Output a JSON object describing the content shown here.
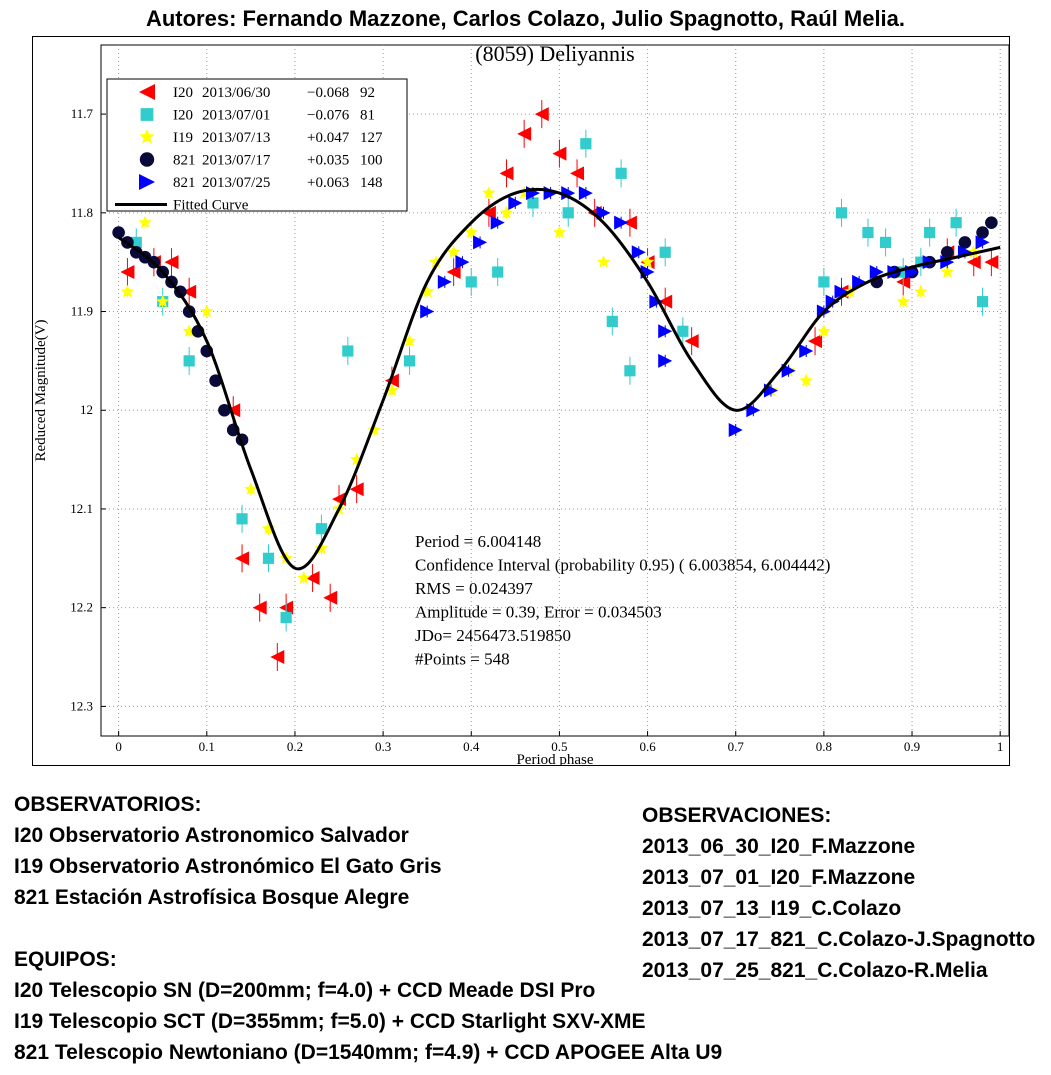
{
  "header": {
    "authors": "Autores: Fernando Mazzone, Carlos Colazo, Julio Spagnotto, Raúl Melia."
  },
  "colors": {
    "red": "#ff0000",
    "cyan": "#33cccc",
    "yellow": "#ffff00",
    "navy": "#0a0a3a",
    "blue": "#0000ff",
    "curve": "#000000"
  },
  "chart_data": {
    "type": "scatter",
    "title": "(8059) Deliyannis",
    "xlabel": "Period phase",
    "ylabel": "Reduced Magnitude(V)",
    "xlim": [
      -0.02,
      1.01
    ],
    "ylim": [
      11.63,
      12.33
    ],
    "y_inverted": true,
    "grid": true,
    "xticks": [
      0,
      0.1,
      0.2,
      0.3,
      0.4,
      0.5,
      0.6,
      0.7,
      0.8,
      0.9,
      1
    ],
    "xtick_labels": [
      "0",
      "0.1",
      "0.2",
      "0.3",
      "0.4",
      "0.5",
      "0.6",
      "0.7",
      "0.8",
      "0.9",
      "1"
    ],
    "yticks": [
      11.7,
      11.8,
      11.9,
      12,
      12.1,
      12.2,
      12.3
    ],
    "ytick_labels": [
      "11.7",
      "11.8",
      "11.9",
      "12",
      "12.1",
      "12.2",
      "12.3"
    ],
    "legend_position": "top-left",
    "legend": [
      {
        "marker": "triangle-left",
        "color": "red",
        "site": "I20",
        "date": "2013/06/30",
        "offset": "−0.068",
        "points": "92"
      },
      {
        "marker": "square",
        "color": "cyan",
        "site": "I20",
        "date": "2013/07/01",
        "offset": "−0.076",
        "points": "81"
      },
      {
        "marker": "star",
        "color": "yellow",
        "site": "I19",
        "date": "2013/07/13",
        "offset": "+0.047",
        "points": "127"
      },
      {
        "marker": "circle",
        "color": "navy",
        "site": "821",
        "date": "2013/07/17",
        "offset": "+0.035",
        "points": "100"
      },
      {
        "marker": "triangle-right",
        "color": "blue",
        "site": "821",
        "date": "2013/07/25",
        "offset": "+0.063",
        "points": "148"
      }
    ],
    "fitted_curve_label": "Fitted Curve",
    "fitted_curve": [
      [
        0.0,
        11.825
      ],
      [
        0.05,
        11.86
      ],
      [
        0.1,
        11.93
      ],
      [
        0.15,
        12.06
      ],
      [
        0.2,
        12.16
      ],
      [
        0.25,
        12.1
      ],
      [
        0.3,
        11.99
      ],
      [
        0.35,
        11.87
      ],
      [
        0.4,
        11.81
      ],
      [
        0.45,
        11.78
      ],
      [
        0.5,
        11.78
      ],
      [
        0.55,
        11.81
      ],
      [
        0.6,
        11.87
      ],
      [
        0.65,
        11.95
      ],
      [
        0.7,
        12.0
      ],
      [
        0.75,
        11.96
      ],
      [
        0.8,
        11.9
      ],
      [
        0.85,
        11.87
      ],
      [
        0.9,
        11.855
      ],
      [
        0.95,
        11.845
      ],
      [
        1.0,
        11.835
      ]
    ],
    "series": [
      {
        "name": "I20 2013/06/30",
        "marker": "triangle-left",
        "color": "red",
        "points": [
          [
            0.01,
            11.86
          ],
          [
            0.04,
            11.85
          ],
          [
            0.06,
            11.85
          ],
          [
            0.08,
            11.88
          ],
          [
            0.13,
            12.0
          ],
          [
            0.14,
            12.15
          ],
          [
            0.16,
            12.2
          ],
          [
            0.18,
            12.25
          ],
          [
            0.19,
            12.2
          ],
          [
            0.22,
            12.17
          ],
          [
            0.24,
            12.19
          ],
          [
            0.25,
            12.09
          ],
          [
            0.27,
            12.08
          ],
          [
            0.31,
            11.97
          ],
          [
            0.38,
            11.86
          ],
          [
            0.42,
            11.8
          ],
          [
            0.44,
            11.76
          ],
          [
            0.46,
            11.72
          ],
          [
            0.48,
            11.7
          ],
          [
            0.5,
            11.74
          ],
          [
            0.52,
            11.76
          ],
          [
            0.54,
            11.8
          ],
          [
            0.58,
            11.81
          ],
          [
            0.6,
            11.85
          ],
          [
            0.62,
            11.89
          ],
          [
            0.65,
            11.93
          ],
          [
            0.79,
            11.93
          ],
          [
            0.82,
            11.88
          ],
          [
            0.89,
            11.87
          ],
          [
            0.94,
            11.84
          ],
          [
            0.97,
            11.85
          ],
          [
            0.99,
            11.85
          ]
        ]
      },
      {
        "name": "I20 2013/07/01",
        "marker": "square",
        "color": "cyan",
        "points": [
          [
            0.02,
            11.83
          ],
          [
            0.05,
            11.89
          ],
          [
            0.08,
            11.95
          ],
          [
            0.14,
            12.11
          ],
          [
            0.17,
            12.15
          ],
          [
            0.19,
            12.21
          ],
          [
            0.23,
            12.12
          ],
          [
            0.26,
            11.94
          ],
          [
            0.33,
            11.95
          ],
          [
            0.4,
            11.87
          ],
          [
            0.43,
            11.86
          ],
          [
            0.47,
            11.79
          ],
          [
            0.51,
            11.8
          ],
          [
            0.53,
            11.73
          ],
          [
            0.56,
            11.91
          ],
          [
            0.57,
            11.76
          ],
          [
            0.58,
            11.96
          ],
          [
            0.62,
            11.84
          ],
          [
            0.64,
            11.92
          ],
          [
            0.8,
            11.87
          ],
          [
            0.82,
            11.8
          ],
          [
            0.85,
            11.82
          ],
          [
            0.87,
            11.83
          ],
          [
            0.89,
            11.86
          ],
          [
            0.91,
            11.85
          ],
          [
            0.92,
            11.82
          ],
          [
            0.95,
            11.81
          ],
          [
            0.98,
            11.89
          ]
        ]
      },
      {
        "name": "I19 2013/07/13",
        "marker": "star",
        "color": "yellow",
        "points": [
          [
            0.01,
            11.88
          ],
          [
            0.03,
            11.81
          ],
          [
            0.05,
            11.89
          ],
          [
            0.08,
            11.92
          ],
          [
            0.1,
            11.9
          ],
          [
            0.12,
            12.0
          ],
          [
            0.15,
            12.08
          ],
          [
            0.17,
            12.12
          ],
          [
            0.19,
            12.15
          ],
          [
            0.21,
            12.17
          ],
          [
            0.23,
            12.14
          ],
          [
            0.25,
            12.1
          ],
          [
            0.27,
            12.05
          ],
          [
            0.29,
            12.02
          ],
          [
            0.31,
            11.98
          ],
          [
            0.33,
            11.93
          ],
          [
            0.35,
            11.88
          ],
          [
            0.36,
            11.85
          ],
          [
            0.38,
            11.84
          ],
          [
            0.4,
            11.82
          ],
          [
            0.42,
            11.78
          ],
          [
            0.44,
            11.8
          ],
          [
            0.46,
            11.78
          ],
          [
            0.5,
            11.82
          ],
          [
            0.55,
            11.85
          ],
          [
            0.6,
            11.85
          ],
          [
            0.74,
            11.98
          ],
          [
            0.76,
            11.96
          ],
          [
            0.78,
            11.97
          ],
          [
            0.8,
            11.92
          ],
          [
            0.83,
            11.88
          ],
          [
            0.86,
            11.87
          ],
          [
            0.89,
            11.89
          ],
          [
            0.91,
            11.88
          ],
          [
            0.94,
            11.86
          ],
          [
            0.97,
            11.84
          ]
        ]
      },
      {
        "name": "821 2013/07/17",
        "marker": "circle",
        "color": "navy",
        "points": [
          [
            0.0,
            11.82
          ],
          [
            0.01,
            11.83
          ],
          [
            0.02,
            11.84
          ],
          [
            0.03,
            11.845
          ],
          [
            0.04,
            11.85
          ],
          [
            0.05,
            11.86
          ],
          [
            0.06,
            11.87
          ],
          [
            0.07,
            11.88
          ],
          [
            0.08,
            11.9
          ],
          [
            0.09,
            11.92
          ],
          [
            0.1,
            11.94
          ],
          [
            0.11,
            11.97
          ],
          [
            0.12,
            12.0
          ],
          [
            0.13,
            12.02
          ],
          [
            0.14,
            12.03
          ],
          [
            0.86,
            11.87
          ],
          [
            0.88,
            11.86
          ],
          [
            0.9,
            11.86
          ],
          [
            0.92,
            11.85
          ],
          [
            0.94,
            11.84
          ],
          [
            0.96,
            11.83
          ],
          [
            0.98,
            11.82
          ],
          [
            0.99,
            11.81
          ]
        ]
      },
      {
        "name": "821 2013/07/25",
        "marker": "triangle-right",
        "color": "blue",
        "points": [
          [
            0.35,
            11.9
          ],
          [
            0.37,
            11.87
          ],
          [
            0.39,
            11.85
          ],
          [
            0.41,
            11.83
          ],
          [
            0.43,
            11.81
          ],
          [
            0.45,
            11.79
          ],
          [
            0.47,
            11.78
          ],
          [
            0.49,
            11.78
          ],
          [
            0.51,
            11.78
          ],
          [
            0.53,
            11.78
          ],
          [
            0.55,
            11.8
          ],
          [
            0.57,
            11.81
          ],
          [
            0.59,
            11.84
          ],
          [
            0.6,
            11.86
          ],
          [
            0.61,
            11.89
          ],
          [
            0.62,
            11.92
          ],
          [
            0.62,
            11.95
          ],
          [
            0.7,
            12.02
          ],
          [
            0.72,
            12.0
          ],
          [
            0.74,
            11.98
          ],
          [
            0.76,
            11.96
          ],
          [
            0.78,
            11.94
          ],
          [
            0.8,
            11.9
          ],
          [
            0.81,
            11.89
          ],
          [
            0.82,
            11.88
          ],
          [
            0.84,
            11.87
          ],
          [
            0.86,
            11.86
          ],
          [
            0.88,
            11.86
          ],
          [
            0.9,
            11.86
          ],
          [
            0.92,
            11.85
          ],
          [
            0.94,
            11.85
          ],
          [
            0.96,
            11.84
          ],
          [
            0.98,
            11.83
          ]
        ]
      }
    ],
    "annotations": [
      "Period =  6.004148",
      "Confidence Interval (probability 0.95) ( 6.003854,  6.004442)",
      "RMS = 0.024397",
      "Amplitude = 0.39, Error =    0.034503",
      "JDo= 2456473.519850",
      " #Points =    548"
    ]
  },
  "observatorios": {
    "heading": "OBSERVATORIOS:",
    "items": [
      "I20 Observatorio Astronomico Salvador",
      "I19 Observatorio Astronómico El Gato Gris",
      "821 Estación Astrofísica Bosque Alegre"
    ]
  },
  "equipos": {
    "heading": "EQUIPOS:",
    "items": [
      "I20 Telescopio SN (D=200mm; f=4.0) + CCD Meade DSI Pro",
      "I19 Telescopio SCT (D=355mm; f=5.0) + CCD Starlight SXV-XME",
      "821 Telescopio Newtoniano (D=1540mm; f=4.9) + CCD APOGEE Alta U9"
    ]
  },
  "observaciones": {
    "heading": "OBSERVACIONES:",
    "items": [
      "2013_06_30_I20_F.Mazzone",
      "2013_07_01_I20_F.Mazzone",
      "2013_07_13_I19_C.Colazo",
      "2013_07_17_821_C.Colazo-J.Spagnotto",
      "2013_07_25_821_C.Colazo-R.Melia"
    ]
  }
}
